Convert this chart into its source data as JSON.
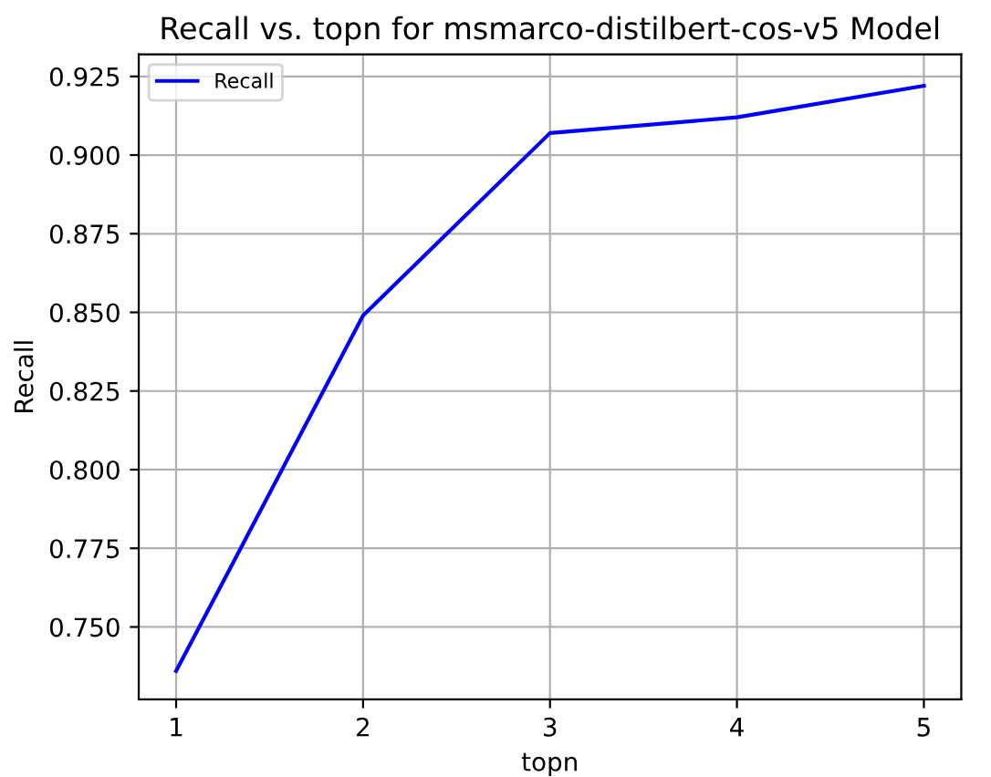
{
  "chart_data": {
    "type": "line",
    "title": "Recall vs. topn for msmarco-distilbert-cos-v5 Model",
    "xlabel": "topn",
    "ylabel": "Recall",
    "x": [
      1,
      2,
      3,
      4,
      5
    ],
    "series": [
      {
        "name": "Recall",
        "color": "#0000ff",
        "values": [
          0.736,
          0.849,
          0.907,
          0.912,
          0.922
        ]
      }
    ],
    "xlim": [
      0.8,
      5.2
    ],
    "xticks": [
      1,
      2,
      3,
      4,
      5
    ],
    "ylim": [
      0.727,
      0.932
    ],
    "yticks": [
      {
        "value": 0.75,
        "label": "0.750"
      },
      {
        "value": 0.775,
        "label": "0.775"
      },
      {
        "value": 0.8,
        "label": "0.800"
      },
      {
        "value": 0.825,
        "label": "0.825"
      },
      {
        "value": 0.85,
        "label": "0.850"
      },
      {
        "value": 0.875,
        "label": "0.875"
      },
      {
        "value": 0.9,
        "label": "0.900"
      },
      {
        "value": 0.925,
        "label": "0.925"
      }
    ],
    "grid": true,
    "legend": "upper left"
  }
}
